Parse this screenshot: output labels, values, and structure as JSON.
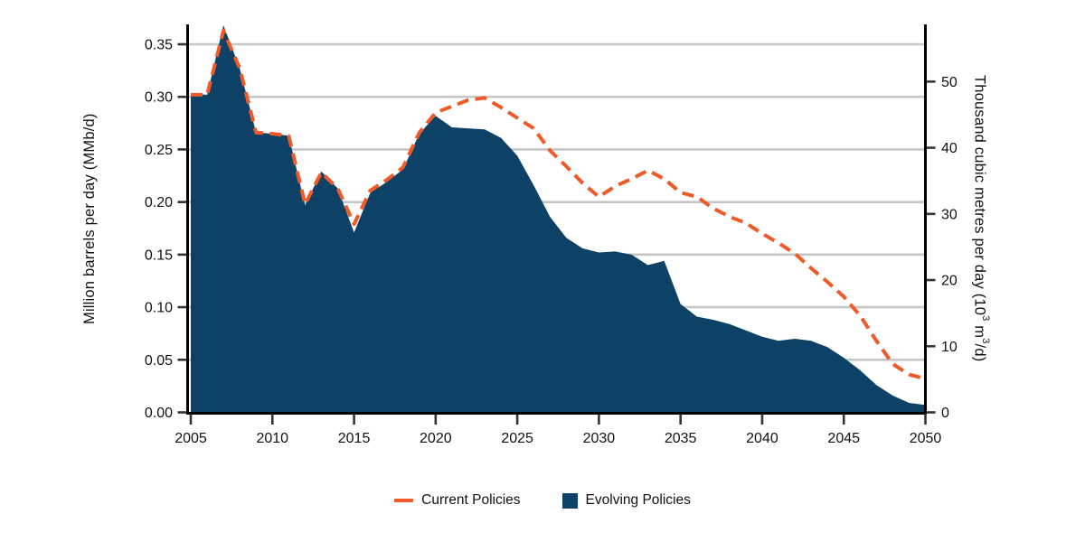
{
  "chart_data": {
    "type": "area",
    "title": "",
    "x": [
      2005,
      2006,
      2007,
      2008,
      2009,
      2010,
      2011,
      2012,
      2013,
      2014,
      2015,
      2016,
      2017,
      2018,
      2019,
      2020,
      2021,
      2022,
      2023,
      2024,
      2025,
      2026,
      2027,
      2028,
      2029,
      2030,
      2031,
      2032,
      2033,
      2034,
      2035,
      2036,
      2037,
      2038,
      2039,
      2040,
      2041,
      2042,
      2043,
      2044,
      2045,
      2046,
      2047,
      2048,
      2049,
      2050
    ],
    "series": [
      {
        "name": "Current Policies",
        "type": "line",
        "line_style": "dashed",
        "color": "#f05a28",
        "values": [
          0.302,
          0.302,
          0.363,
          0.327,
          0.266,
          0.265,
          0.263,
          0.198,
          0.228,
          0.213,
          0.179,
          0.211,
          0.221,
          0.233,
          0.266,
          0.285,
          0.291,
          0.297,
          0.299,
          0.29,
          0.28,
          0.27,
          0.249,
          0.234,
          0.218,
          0.205,
          0.215,
          0.222,
          0.23,
          0.222,
          0.209,
          0.205,
          0.194,
          0.186,
          0.18,
          0.17,
          0.161,
          0.151,
          0.137,
          0.124,
          0.11,
          0.092,
          0.068,
          0.046,
          0.036,
          0.032
        ]
      },
      {
        "name": "Evolving Policies",
        "type": "area",
        "color": "#0d4266",
        "values": [
          0.303,
          0.302,
          0.368,
          0.327,
          0.266,
          0.265,
          0.263,
          0.197,
          0.229,
          0.213,
          0.171,
          0.209,
          0.219,
          0.231,
          0.265,
          0.282,
          0.271,
          0.27,
          0.269,
          0.261,
          0.244,
          0.216,
          0.186,
          0.166,
          0.156,
          0.152,
          0.153,
          0.15,
          0.14,
          0.144,
          0.103,
          0.091,
          0.088,
          0.084,
          0.078,
          0.072,
          0.068,
          0.07,
          0.068,
          0.062,
          0.052,
          0.04,
          0.026,
          0.016,
          0.009,
          0.007
        ]
      }
    ],
    "left_axis": {
      "label": "Million barrels per day (MMb/d)",
      "tick_labels": [
        "0.00",
        "0.05",
        "0.10",
        "0.15",
        "0.20",
        "0.25",
        "0.30",
        "0.35"
      ],
      "range": [
        0,
        0.37
      ],
      "grid_values": [
        0.05,
        0.1,
        0.15,
        0.2,
        0.25,
        0.3,
        0.35
      ]
    },
    "right_axis": {
      "label": "Thousand cubic metres per day (10³ m³/d)",
      "ticks": [
        0,
        10,
        20,
        30,
        40,
        50
      ],
      "range": [
        0,
        58.8
      ]
    },
    "x_axis": {
      "ticks": [
        2005,
        2010,
        2015,
        2020,
        2025,
        2030,
        2035,
        2040,
        2045,
        2050
      ],
      "range": [
        2005,
        2050
      ]
    },
    "grid": "horizontal-light-gray",
    "legend_position": "bottom-center"
  },
  "axes": {
    "left": {
      "title": "Million barrels per day (MMb/d)"
    },
    "right": {
      "parts": {
        "p1": "Thousand cubic metres per day (10",
        "s1": "3",
        "p2": " m",
        "s2": "3",
        "p3": "/d)"
      }
    }
  },
  "legend": {
    "items": [
      {
        "label": "Current Policies",
        "swatch": "orange-dash"
      },
      {
        "label": "Evolving Policies",
        "swatch": "navy-square"
      }
    ]
  },
  "colors": {
    "current_policies": "#f05a28",
    "evolving_policies": "#0d4266",
    "gridline": "#c6c6c6",
    "axis_line": "#000000",
    "tick_mark": "#333333",
    "text": "#111111",
    "background": "#ffffff"
  }
}
